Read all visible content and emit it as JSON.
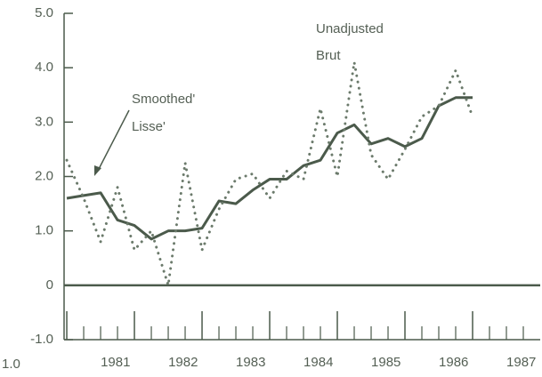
{
  "chart_data": {
    "type": "line",
    "x": [
      1981,
      1981.25,
      1981.5,
      1981.75,
      1982,
      1982.25,
      1982.5,
      1982.75,
      1983,
      1983.25,
      1983.5,
      1983.75,
      1984,
      1984.25,
      1984.5,
      1984.75,
      1985,
      1985.25,
      1985.5,
      1985.75,
      1986,
      1986.25,
      1986.5,
      1986.75,
      1987,
      1987.25,
      1987.5
    ],
    "series": [
      {
        "name": "Smoothed'",
        "color": "#4b5a4b",
        "style": "solid",
        "values": [
          1.6,
          1.65,
          1.7,
          1.2,
          1.1,
          0.85,
          1.0,
          1.0,
          1.05,
          1.55,
          1.5,
          1.75,
          1.95,
          1.95,
          2.2,
          2.3,
          2.8,
          2.95,
          2.6,
          2.7,
          2.55,
          2.7,
          3.3,
          3.45,
          3.45,
          null,
          null
        ]
      },
      {
        "name": "Unadjusted",
        "color": "#6b7a6b",
        "style": "dotted",
        "values": [
          2.3,
          1.6,
          0.8,
          1.8,
          0.65,
          1.0,
          0.0,
          2.25,
          0.65,
          1.4,
          1.95,
          2.05,
          1.6,
          2.1,
          1.95,
          3.25,
          2.0,
          4.1,
          2.4,
          1.95,
          2.5,
          3.1,
          3.3,
          3.95,
          3.1,
          null,
          3.2
        ]
      }
    ],
    "annotations": [
      "Smoothed'",
      "Lisse'",
      "Unadjusted",
      "Brut",
      "1.0"
    ],
    "xlim": [
      1980.96,
      1988
    ],
    "xticks": [
      {
        "value": 1981,
        "label": "1981"
      },
      {
        "value": 1982,
        "label": "1982"
      },
      {
        "value": 1983,
        "label": "1983"
      },
      {
        "value": 1984,
        "label": "1984"
      },
      {
        "value": 1985,
        "label": "1985"
      },
      {
        "value": 1986,
        "label": "1986"
      },
      {
        "value": 1987,
        "label": "1987"
      }
    ],
    "ylim": [
      -1,
      5
    ],
    "yticks": [
      {
        "value": 5,
        "label": "5.0"
      },
      {
        "value": 4,
        "label": "4.0"
      },
      {
        "value": 3,
        "label": "3.0"
      },
      {
        "value": 2,
        "label": "2.0"
      },
      {
        "value": 1,
        "label": "1.0"
      },
      0,
      {
        "value": -1,
        "label": "-1.0"
      }
    ],
    "grid": false
  }
}
